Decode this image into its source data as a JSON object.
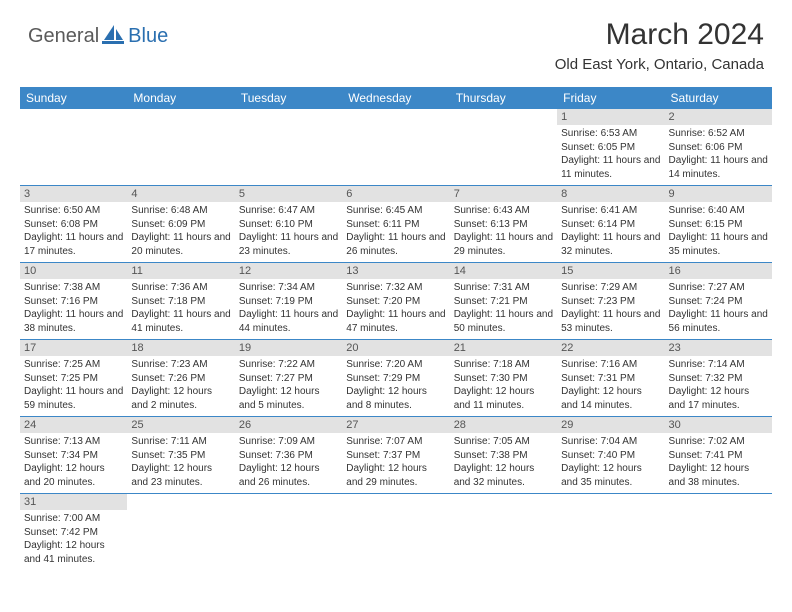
{
  "logo": {
    "general": "General",
    "blue": "Blue"
  },
  "title": "March 2024",
  "location": "Old East York, Ontario, Canada",
  "colors": {
    "header_bg": "#3c87c7",
    "daynum_bg": "#e2e2e2",
    "row_border": "#3c87c7",
    "text": "#333333"
  },
  "daysOfWeek": [
    "Sunday",
    "Monday",
    "Tuesday",
    "Wednesday",
    "Thursday",
    "Friday",
    "Saturday"
  ],
  "weeks": [
    [
      null,
      null,
      null,
      null,
      null,
      {
        "n": "1",
        "sr": "6:53 AM",
        "ss": "6:05 PM",
        "dl": "11 hours and 11 minutes."
      },
      {
        "n": "2",
        "sr": "6:52 AM",
        "ss": "6:06 PM",
        "dl": "11 hours and 14 minutes."
      }
    ],
    [
      {
        "n": "3",
        "sr": "6:50 AM",
        "ss": "6:08 PM",
        "dl": "11 hours and 17 minutes."
      },
      {
        "n": "4",
        "sr": "6:48 AM",
        "ss": "6:09 PM",
        "dl": "11 hours and 20 minutes."
      },
      {
        "n": "5",
        "sr": "6:47 AM",
        "ss": "6:10 PM",
        "dl": "11 hours and 23 minutes."
      },
      {
        "n": "6",
        "sr": "6:45 AM",
        "ss": "6:11 PM",
        "dl": "11 hours and 26 minutes."
      },
      {
        "n": "7",
        "sr": "6:43 AM",
        "ss": "6:13 PM",
        "dl": "11 hours and 29 minutes."
      },
      {
        "n": "8",
        "sr": "6:41 AM",
        "ss": "6:14 PM",
        "dl": "11 hours and 32 minutes."
      },
      {
        "n": "9",
        "sr": "6:40 AM",
        "ss": "6:15 PM",
        "dl": "11 hours and 35 minutes."
      }
    ],
    [
      {
        "n": "10",
        "sr": "7:38 AM",
        "ss": "7:16 PM",
        "dl": "11 hours and 38 minutes."
      },
      {
        "n": "11",
        "sr": "7:36 AM",
        "ss": "7:18 PM",
        "dl": "11 hours and 41 minutes."
      },
      {
        "n": "12",
        "sr": "7:34 AM",
        "ss": "7:19 PM",
        "dl": "11 hours and 44 minutes."
      },
      {
        "n": "13",
        "sr": "7:32 AM",
        "ss": "7:20 PM",
        "dl": "11 hours and 47 minutes."
      },
      {
        "n": "14",
        "sr": "7:31 AM",
        "ss": "7:21 PM",
        "dl": "11 hours and 50 minutes."
      },
      {
        "n": "15",
        "sr": "7:29 AM",
        "ss": "7:23 PM",
        "dl": "11 hours and 53 minutes."
      },
      {
        "n": "16",
        "sr": "7:27 AM",
        "ss": "7:24 PM",
        "dl": "11 hours and 56 minutes."
      }
    ],
    [
      {
        "n": "17",
        "sr": "7:25 AM",
        "ss": "7:25 PM",
        "dl": "11 hours and 59 minutes."
      },
      {
        "n": "18",
        "sr": "7:23 AM",
        "ss": "7:26 PM",
        "dl": "12 hours and 2 minutes."
      },
      {
        "n": "19",
        "sr": "7:22 AM",
        "ss": "7:27 PM",
        "dl": "12 hours and 5 minutes."
      },
      {
        "n": "20",
        "sr": "7:20 AM",
        "ss": "7:29 PM",
        "dl": "12 hours and 8 minutes."
      },
      {
        "n": "21",
        "sr": "7:18 AM",
        "ss": "7:30 PM",
        "dl": "12 hours and 11 minutes."
      },
      {
        "n": "22",
        "sr": "7:16 AM",
        "ss": "7:31 PM",
        "dl": "12 hours and 14 minutes."
      },
      {
        "n": "23",
        "sr": "7:14 AM",
        "ss": "7:32 PM",
        "dl": "12 hours and 17 minutes."
      }
    ],
    [
      {
        "n": "24",
        "sr": "7:13 AM",
        "ss": "7:34 PM",
        "dl": "12 hours and 20 minutes."
      },
      {
        "n": "25",
        "sr": "7:11 AM",
        "ss": "7:35 PM",
        "dl": "12 hours and 23 minutes."
      },
      {
        "n": "26",
        "sr": "7:09 AM",
        "ss": "7:36 PM",
        "dl": "12 hours and 26 minutes."
      },
      {
        "n": "27",
        "sr": "7:07 AM",
        "ss": "7:37 PM",
        "dl": "12 hours and 29 minutes."
      },
      {
        "n": "28",
        "sr": "7:05 AM",
        "ss": "7:38 PM",
        "dl": "12 hours and 32 minutes."
      },
      {
        "n": "29",
        "sr": "7:04 AM",
        "ss": "7:40 PM",
        "dl": "12 hours and 35 minutes."
      },
      {
        "n": "30",
        "sr": "7:02 AM",
        "ss": "7:41 PM",
        "dl": "12 hours and 38 minutes."
      }
    ],
    [
      {
        "n": "31",
        "sr": "7:00 AM",
        "ss": "7:42 PM",
        "dl": "12 hours and 41 minutes."
      },
      null,
      null,
      null,
      null,
      null,
      null
    ]
  ],
  "labels": {
    "sunrise": "Sunrise:",
    "sunset": "Sunset:",
    "daylight": "Daylight:"
  }
}
